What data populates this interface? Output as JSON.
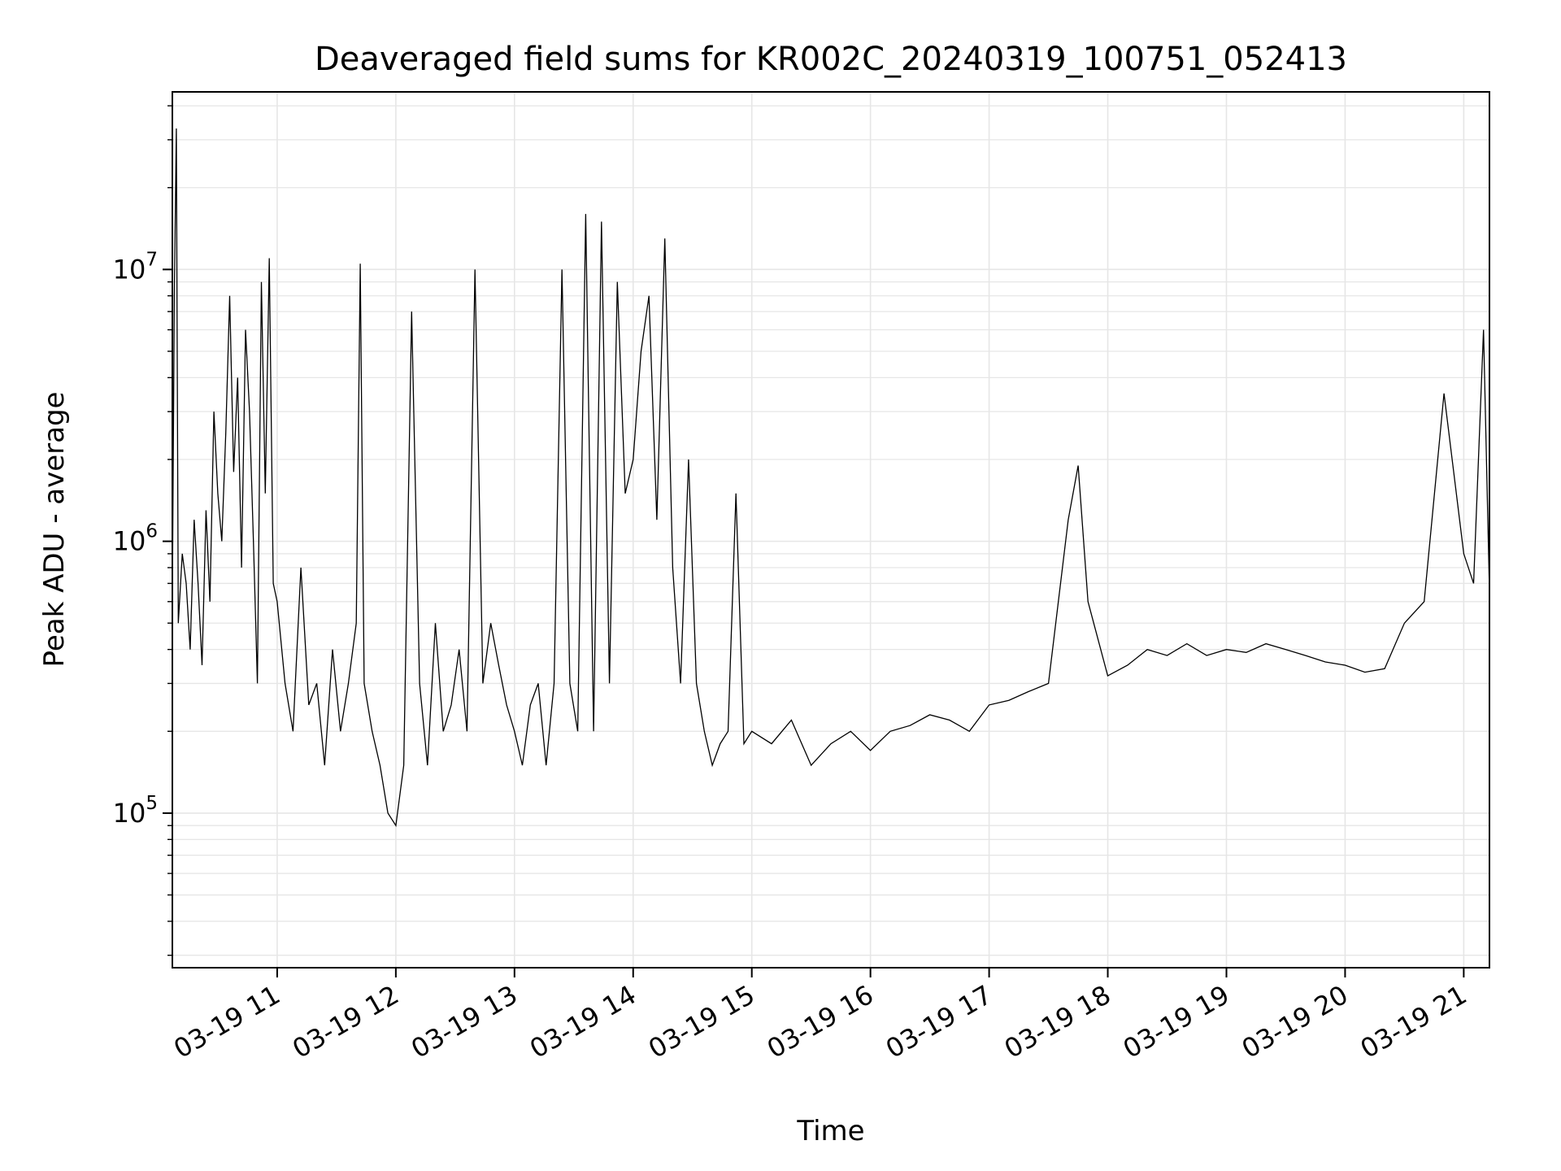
{
  "chart_data": {
    "type": "line",
    "title": "Deaveraged field sums for KR002C_20240319_100751_052413",
    "xlabel": "Time",
    "ylabel": "Peak ADU - average",
    "yscale": "log",
    "grid": true,
    "line_color": "#000000",
    "grid_color": "#e6e6e6",
    "xlim": [
      "2024-03-19 10:07",
      "2024-03-19 21:13"
    ],
    "ylim": [
      27000,
      45000000
    ],
    "x_ticks": [
      {
        "value": "2024-03-19 11:00",
        "label": "03-19 11"
      },
      {
        "value": "2024-03-19 12:00",
        "label": "03-19 12"
      },
      {
        "value": "2024-03-19 13:00",
        "label": "03-19 13"
      },
      {
        "value": "2024-03-19 14:00",
        "label": "03-19 14"
      },
      {
        "value": "2024-03-19 15:00",
        "label": "03-19 15"
      },
      {
        "value": "2024-03-19 16:00",
        "label": "03-19 16"
      },
      {
        "value": "2024-03-19 17:00",
        "label": "03-19 17"
      },
      {
        "value": "2024-03-19 18:00",
        "label": "03-19 18"
      },
      {
        "value": "2024-03-19 19:00",
        "label": "03-19 19"
      },
      {
        "value": "2024-03-19 20:00",
        "label": "03-19 20"
      },
      {
        "value": "2024-03-19 21:00",
        "label": "03-19 21"
      }
    ],
    "y_ticks": [
      {
        "value": 100000,
        "base": "10",
        "exp": "5"
      },
      {
        "value": 1000000,
        "base": "10",
        "exp": "6"
      },
      {
        "value": 10000000,
        "base": "10",
        "exp": "7"
      }
    ],
    "series": [
      {
        "x": [
          "2024-03-19 10:07",
          "2024-03-19 10:08",
          "2024-03-19 10:09",
          "2024-03-19 10:10",
          "2024-03-19 10:12",
          "2024-03-19 10:14",
          "2024-03-19 10:16",
          "2024-03-19 10:18",
          "2024-03-19 10:20",
          "2024-03-19 10:22",
          "2024-03-19 10:24",
          "2024-03-19 10:26",
          "2024-03-19 10:28",
          "2024-03-19 10:30",
          "2024-03-19 10:32",
          "2024-03-19 10:34",
          "2024-03-19 10:36",
          "2024-03-19 10:38",
          "2024-03-19 10:40",
          "2024-03-19 10:42",
          "2024-03-19 10:44",
          "2024-03-19 10:46",
          "2024-03-19 10:48",
          "2024-03-19 10:50",
          "2024-03-19 10:52",
          "2024-03-19 10:54",
          "2024-03-19 10:56",
          "2024-03-19 10:58",
          "2024-03-19 11:00",
          "2024-03-19 11:04",
          "2024-03-19 11:08",
          "2024-03-19 11:12",
          "2024-03-19 11:16",
          "2024-03-19 11:20",
          "2024-03-19 11:24",
          "2024-03-19 11:28",
          "2024-03-19 11:32",
          "2024-03-19 11:36",
          "2024-03-19 11:40",
          "2024-03-19 11:42",
          "2024-03-19 11:44",
          "2024-03-19 11:48",
          "2024-03-19 11:52",
          "2024-03-19 11:56",
          "2024-03-19 12:00",
          "2024-03-19 12:04",
          "2024-03-19 12:08",
          "2024-03-19 12:12",
          "2024-03-19 12:16",
          "2024-03-19 12:20",
          "2024-03-19 12:24",
          "2024-03-19 12:28",
          "2024-03-19 12:32",
          "2024-03-19 12:36",
          "2024-03-19 12:40",
          "2024-03-19 12:44",
          "2024-03-19 12:48",
          "2024-03-19 12:52",
          "2024-03-19 12:56",
          "2024-03-19 13:00",
          "2024-03-19 13:04",
          "2024-03-19 13:08",
          "2024-03-19 13:12",
          "2024-03-19 13:16",
          "2024-03-19 13:20",
          "2024-03-19 13:24",
          "2024-03-19 13:28",
          "2024-03-19 13:32",
          "2024-03-19 13:36",
          "2024-03-19 13:40",
          "2024-03-19 13:44",
          "2024-03-19 13:48",
          "2024-03-19 13:52",
          "2024-03-19 13:56",
          "2024-03-19 14:00",
          "2024-03-19 14:04",
          "2024-03-19 14:08",
          "2024-03-19 14:12",
          "2024-03-19 14:16",
          "2024-03-19 14:20",
          "2024-03-19 14:24",
          "2024-03-19 14:28",
          "2024-03-19 14:32",
          "2024-03-19 14:36",
          "2024-03-19 14:40",
          "2024-03-19 14:44",
          "2024-03-19 14:48",
          "2024-03-19 14:52",
          "2024-03-19 14:56",
          "2024-03-19 15:00",
          "2024-03-19 15:10",
          "2024-03-19 15:20",
          "2024-03-19 15:30",
          "2024-03-19 15:40",
          "2024-03-19 15:50",
          "2024-03-19 16:00",
          "2024-03-19 16:10",
          "2024-03-19 16:20",
          "2024-03-19 16:30",
          "2024-03-19 16:40",
          "2024-03-19 16:50",
          "2024-03-19 17:00",
          "2024-03-19 17:10",
          "2024-03-19 17:20",
          "2024-03-19 17:30",
          "2024-03-19 17:40",
          "2024-03-19 17:45",
          "2024-03-19 17:50",
          "2024-03-19 18:00",
          "2024-03-19 18:10",
          "2024-03-19 18:20",
          "2024-03-19 18:30",
          "2024-03-19 18:40",
          "2024-03-19 18:50",
          "2024-03-19 19:00",
          "2024-03-19 19:10",
          "2024-03-19 19:20",
          "2024-03-19 19:30",
          "2024-03-19 19:40",
          "2024-03-19 19:50",
          "2024-03-19 20:00",
          "2024-03-19 20:10",
          "2024-03-19 20:20",
          "2024-03-19 20:30",
          "2024-03-19 20:40",
          "2024-03-19 20:50",
          "2024-03-19 21:00",
          "2024-03-19 21:05",
          "2024-03-19 21:10",
          "2024-03-19 21:13"
        ],
        "y": [
          600000,
          8000000,
          33000000,
          500000,
          900000,
          700000,
          400000,
          1200000,
          700000,
          350000,
          1300000,
          600000,
          3000000,
          1500000,
          1000000,
          2500000,
          8000000,
          1800000,
          4000000,
          800000,
          6000000,
          3000000,
          1000000,
          300000,
          9000000,
          1500000,
          11000000,
          700000,
          600000,
          300000,
          200000,
          800000,
          250000,
          300000,
          150000,
          400000,
          200000,
          300000,
          500000,
          10500000,
          300000,
          200000,
          150000,
          100000,
          90000,
          150000,
          7000000,
          300000,
          150000,
          500000,
          200000,
          250000,
          400000,
          200000,
          10000000,
          300000,
          500000,
          350000,
          250000,
          200000,
          150000,
          250000,
          300000,
          150000,
          300000,
          10000000,
          300000,
          200000,
          16000000,
          200000,
          15000000,
          300000,
          9000000,
          1500000,
          2000000,
          5000000,
          8000000,
          1200000,
          13000000,
          800000,
          300000,
          2000000,
          300000,
          200000,
          150000,
          180000,
          200000,
          1500000,
          180000,
          200000,
          180000,
          220000,
          150000,
          180000,
          200000,
          170000,
          200000,
          210000,
          230000,
          220000,
          200000,
          250000,
          260000,
          280000,
          300000,
          1200000,
          1900000,
          600000,
          320000,
          350000,
          400000,
          380000,
          420000,
          380000,
          400000,
          390000,
          420000,
          400000,
          380000,
          360000,
          350000,
          330000,
          340000,
          500000,
          600000,
          3500000,
          900000,
          700000,
          6000000,
          650000
        ]
      }
    ]
  }
}
